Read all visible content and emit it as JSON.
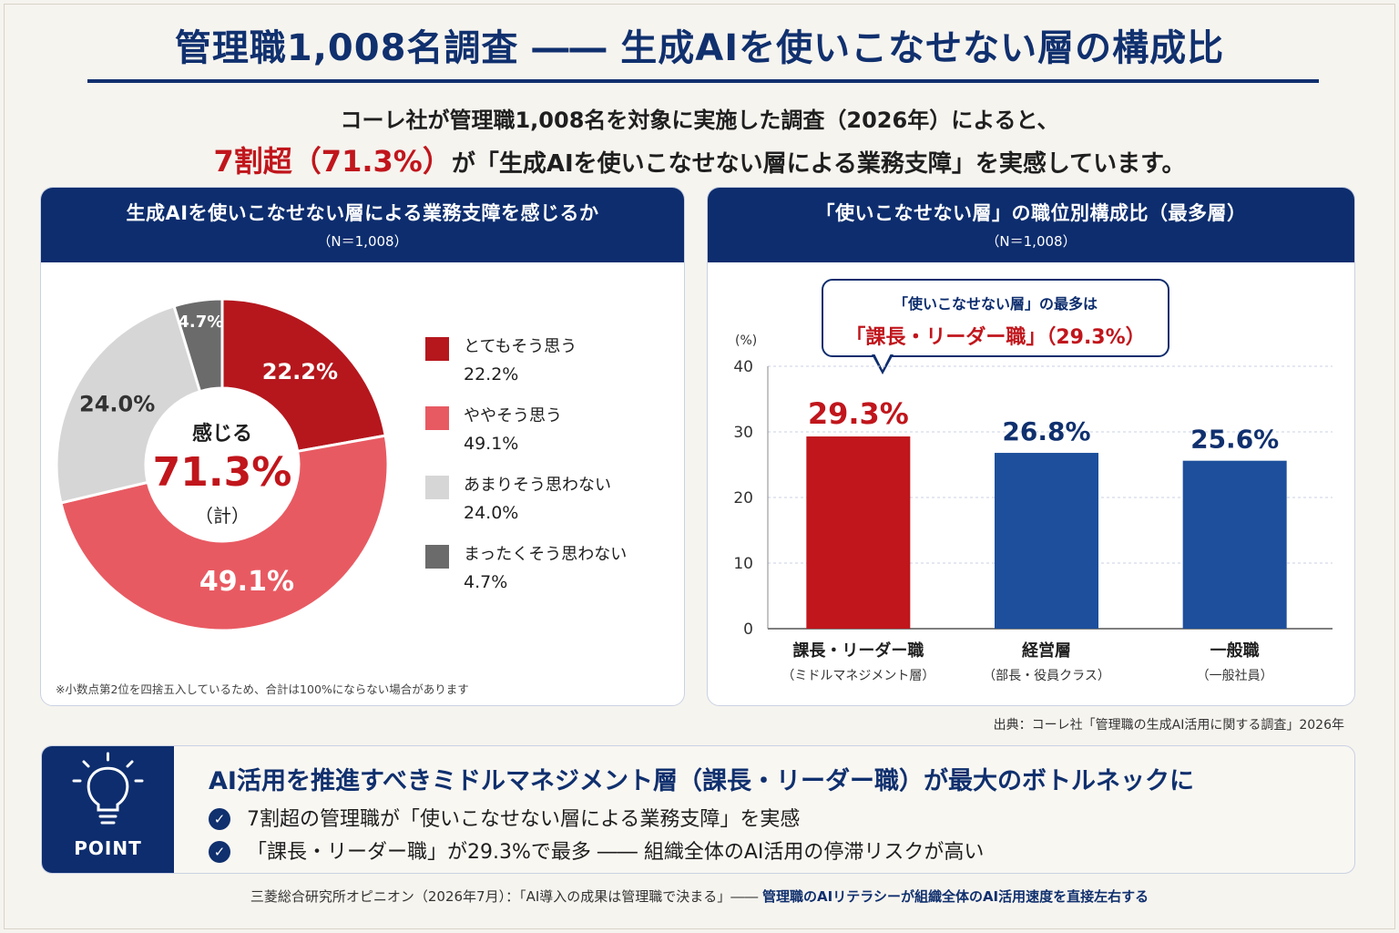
{
  "header": {
    "title": "管理職1,008名調査 ―― 生成AIを使いこなせない層の構成比",
    "intro_line1": "コーレ社が管理職1,008名を対象に実施した調査（2026年）によると、",
    "intro_highlight": "7割超（71.3%）",
    "intro_line2_rest": "が「生成AIを使いこなせない層による業務支障」を実感しています。"
  },
  "left_panel": {
    "title": "生成AIを使いこなせない層による業務支障を感じるか",
    "subtitle": "（N＝1,008）",
    "center_top": "感じる",
    "center_value": "71.3%",
    "center_bottom": "（計）",
    "footnote": "※小数点第2位を四捨五入しているため、合計は100%にならない場合があります"
  },
  "right_panel": {
    "title": "「使いこなせない層」の職位別構成比（最多層）",
    "subtitle": "（N＝1,008）",
    "callout_line1": "「使いこなせない層」の最多は",
    "callout_line2": "「課長・リーダー職」（29.3%）",
    "unit_label": "(%)",
    "x_sublabels": [
      "（ミドルマネジメント層）",
      "（部長・役員クラス）",
      "（一般社員）"
    ]
  },
  "source": "出典：コーレ社「管理職の生成AI活用に関する調査」2026年",
  "point": {
    "badge": "POINT",
    "headline": "AI活用を推進すべきミドルマネジメント層（課長・リーダー職）が最大のボトルネックに",
    "items": [
      "7割超の管理職が「使いこなせない層による業務支障」を実感",
      "「課長・リーダー職」が29.3%で最多 ―― 組織全体のAI活用の停滞リスクが高い"
    ]
  },
  "footer": {
    "part1": "三菱総合研究所オピニオン（2026年7月）：「AI導入の成果は管理職で決まる」―― ",
    "part2": "管理職のAIリテラシーが組織全体のAI活用速度を直接左右する"
  },
  "chart_data": [
    {
      "type": "pie",
      "variant": "donut",
      "categories": [
        "とてもそう思う",
        "ややそう思う",
        "あまりそう思わない",
        "まったくそう思わない"
      ],
      "values": [
        22.2,
        49.1,
        24.0,
        4.7
      ],
      "data_labels": [
        "22.2%",
        "49.1%",
        "24.0%",
        "4.7%"
      ],
      "colors": [
        "#b5171d",
        "#e85a62",
        "#d6d6d6",
        "#6b6b6b"
      ],
      "legend_position": "right"
    },
    {
      "type": "bar",
      "categories": [
        "課長・リーダー職",
        "経営層",
        "一般職"
      ],
      "values": [
        29.3,
        26.8,
        25.6
      ],
      "data_labels": [
        "29.3%",
        "26.8%",
        "25.6%"
      ],
      "colors": [
        "#c0161c",
        "#1d4f9c",
        "#1d4f9c"
      ],
      "label_colors": [
        "#c0161c",
        "#10306e",
        "#10306e"
      ],
      "ylim": [
        0,
        40
      ],
      "yticks": [
        0,
        10,
        20,
        30,
        40
      ],
      "grid": true
    }
  ]
}
